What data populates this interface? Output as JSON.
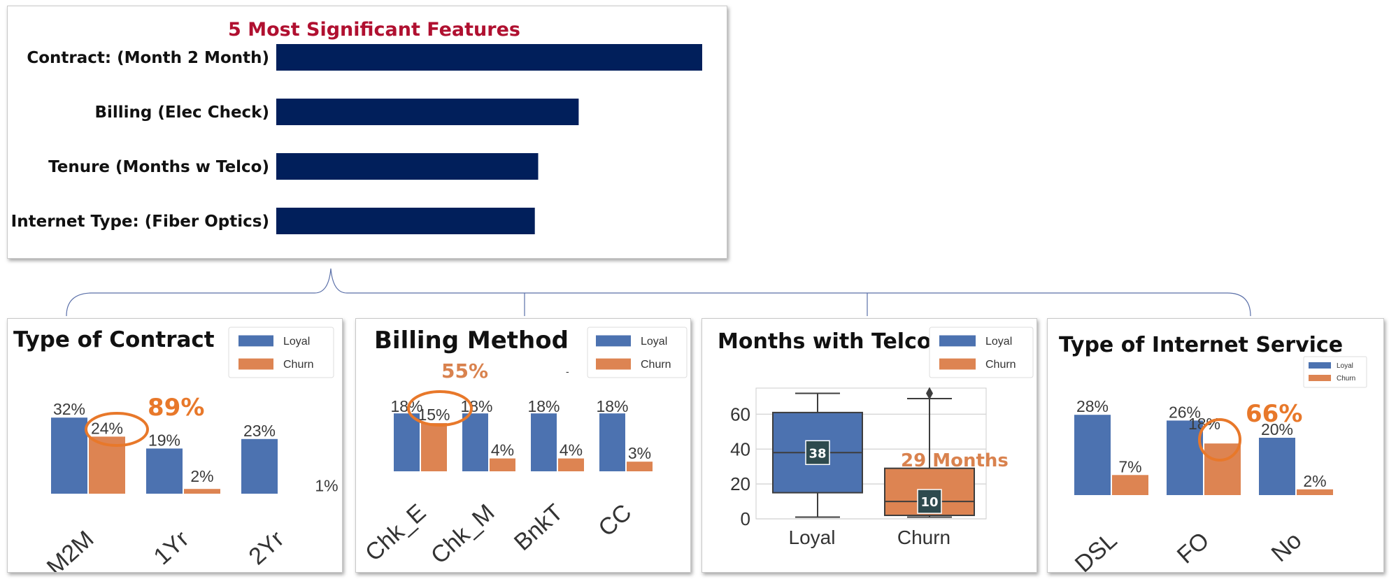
{
  "features": {
    "title": "5 Most Significant Features",
    "bar_color": "#011f5b",
    "title_color": "#b01030",
    "items": [
      {
        "label": "Contract: (Month 2 Month)"
      },
      {
        "label": "Billing (Elec Check)"
      },
      {
        "label": "Tenure (Months w Telco)"
      },
      {
        "label": "Internet Type: (Fiber Optics)"
      }
    ]
  },
  "colors": {
    "loyal": "#4c72b0",
    "churn": "#dd8452",
    "highlight": "#e8782a",
    "annotation": "#d9824e"
  },
  "legend": {
    "loyal": "Loyal",
    "churn": "Churn"
  },
  "panels": {
    "contract": {
      "title": "Type of Contract",
      "callout": "89%"
    },
    "billing": {
      "title": "Billing Method",
      "callout": "55%",
      "stray": "-"
    },
    "months": {
      "title": "Months with Telco",
      "callout": "29 Months"
    },
    "internet": {
      "title": "Type of Internet Service",
      "callout": "66%"
    }
  },
  "chart_data": [
    {
      "type": "bar",
      "title": "5 Most Significant Features",
      "orientation": "horizontal",
      "categories": [
        "Contract: (Month 2 Month)",
        "Billing (Elec Check)",
        "Tenure (Months w Telco)",
        "Internet Type: (Fiber Optics)"
      ],
      "values": [
        1.0,
        0.71,
        0.615,
        0.607
      ]
    },
    {
      "type": "bar",
      "title": "Type of Contract",
      "categories": [
        "M2M",
        "1Yr",
        "2Yr"
      ],
      "series": [
        {
          "name": "Loyal",
          "values": [
            32,
            19,
            23
          ],
          "labels": [
            "32%",
            "19%",
            "23%"
          ]
        },
        {
          "name": "Churn",
          "values": [
            24,
            2,
            1
          ],
          "labels": [
            "24%",
            "2%",
            "1%"
          ]
        }
      ]
    },
    {
      "type": "bar",
      "title": "Billing Method",
      "categories": [
        "Chk_E",
        "Chk_M",
        "BnkT",
        "CC"
      ],
      "series": [
        {
          "name": "Loyal",
          "values": [
            18,
            18,
            18,
            18
          ],
          "labels": [
            "18%",
            "18%",
            "18%",
            "18%"
          ]
        },
        {
          "name": "Churn",
          "values": [
            15,
            4,
            4,
            3
          ],
          "labels": [
            "15%",
            "4%",
            "4%",
            "3%"
          ]
        }
      ]
    },
    {
      "type": "box",
      "title": "Months with Telco",
      "categories": [
        "Loyal",
        "Churn"
      ],
      "ylim": [
        0,
        75
      ],
      "yticks": [
        "0",
        "20",
        "40",
        "60"
      ],
      "boxes": [
        {
          "name": "Loyal",
          "min": 1,
          "q1": 15,
          "median": 38,
          "q3": 61,
          "max": 72,
          "label": "38"
        },
        {
          "name": "Churn",
          "min": 1,
          "q1": 2,
          "median": 10,
          "q3": 29,
          "max": 69,
          "outlier": 72,
          "label": "10"
        }
      ]
    },
    {
      "type": "bar",
      "title": "Type of Internet Service",
      "categories": [
        "DSL",
        "FO",
        "No"
      ],
      "series": [
        {
          "name": "Loyal",
          "values": [
            28,
            26,
            20
          ],
          "labels": [
            "28%",
            "26%",
            "20%"
          ]
        },
        {
          "name": "Churn",
          "values": [
            7,
            18,
            2
          ],
          "labels": [
            "7%",
            "18%",
            "2%"
          ]
        }
      ]
    }
  ]
}
